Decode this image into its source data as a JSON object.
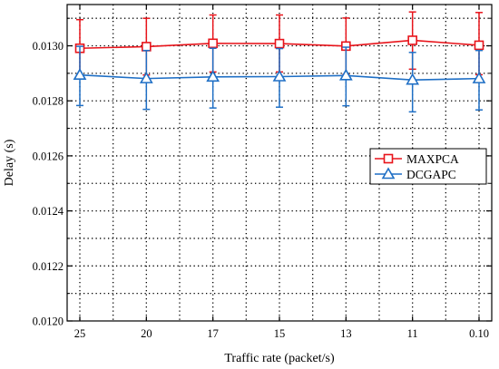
{
  "chart_data": {
    "type": "line",
    "xlabel": "Traffic rate (packet/s)",
    "ylabel": "Delay (s)",
    "ylim": [
      0.012,
      0.01315
    ],
    "yticks": [
      "0.0120",
      "0.0122",
      "0.0124",
      "0.0126",
      "0.0128",
      "0.0130"
    ],
    "categories": [
      "25",
      "20",
      "17",
      "15",
      "13",
      "11",
      "0.10"
    ],
    "grid": true,
    "legend_position": "right",
    "series": [
      {
        "name": "MAXPCA",
        "color": "#e8141b",
        "marker": "square",
        "values": [
          0.012991,
          0.012997,
          0.013009,
          0.013008,
          0.012999,
          0.01302,
          0.013002
        ],
        "err_upper": [
          0.013095,
          0.0131,
          0.013112,
          0.013112,
          0.013101,
          0.013123,
          0.013121
        ],
        "err_lower": [
          0.012891,
          0.012894,
          0.012905,
          0.012905,
          0.012896,
          0.012915,
          0.012895
        ]
      },
      {
        "name": "DCGAPC",
        "color": "#1f6fc5",
        "marker": "triangle",
        "values": [
          0.012894,
          0.012881,
          0.012887,
          0.012888,
          0.012892,
          0.012876,
          0.012881
        ],
        "err_upper": [
          0.012998,
          0.012983,
          0.012991,
          0.01299,
          0.012995,
          0.012976,
          0.012983
        ],
        "err_lower": [
          0.012783,
          0.012769,
          0.012774,
          0.012777,
          0.012782,
          0.01276,
          0.012767
        ]
      }
    ]
  }
}
